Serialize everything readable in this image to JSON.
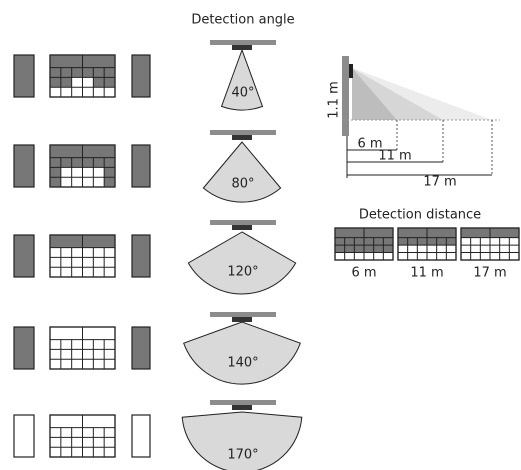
{
  "angle": {
    "title": "Detection angle",
    "rows": [
      {
        "label": "40°"
      },
      {
        "label": "80°"
      },
      {
        "label": "120°"
      },
      {
        "label": "140°"
      },
      {
        "label": "170°"
      }
    ]
  },
  "side_view": {
    "height_label": "1.1 m",
    "distances": [
      "6 m",
      "11 m",
      "17 m"
    ]
  },
  "distance": {
    "title": "Detection distance",
    "items": [
      "6 m",
      "11 m",
      "17 m"
    ]
  }
}
